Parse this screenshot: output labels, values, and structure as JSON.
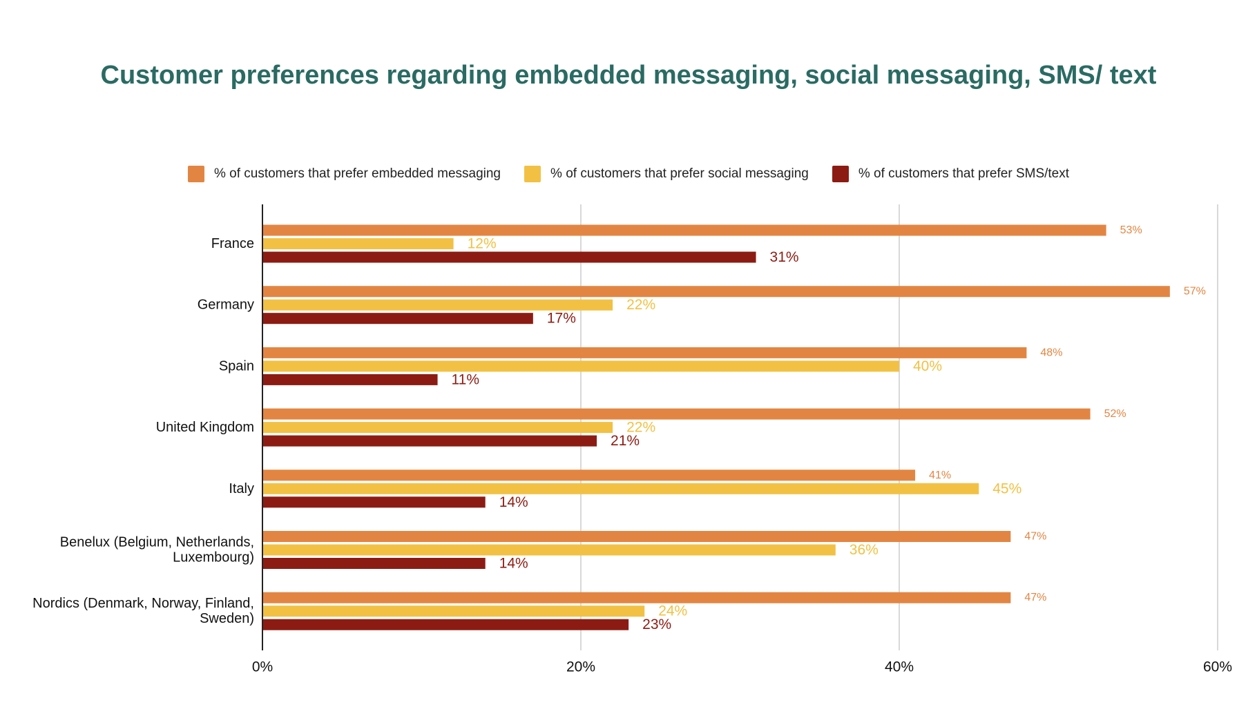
{
  "chart_data": {
    "type": "bar",
    "orientation": "horizontal",
    "title": "Customer preferences regarding embedded messaging, social messaging, SMS/ text",
    "categories": [
      [
        "France"
      ],
      [
        "Germany"
      ],
      [
        "Spain"
      ],
      [
        "United Kingdom"
      ],
      [
        "Italy"
      ],
      [
        "Benelux (Belgium, Netherlands,",
        "Luxembourg)"
      ],
      [
        "Nordics (Denmark, Norway, Finland,",
        "Sweden)"
      ]
    ],
    "series": [
      {
        "name": "% of customers that prefer embedded messaging",
        "color": "#e38542",
        "values": [
          53,
          57,
          48,
          52,
          41,
          47,
          47
        ],
        "labels": [
          "53%",
          "57%",
          "48%",
          "52%",
          "41%",
          "47%",
          "47%"
        ]
      },
      {
        "name": "% of customers that prefer social messaging",
        "color": "#f2c144",
        "values": [
          12,
          22,
          40,
          22,
          45,
          36,
          24
        ],
        "labels": [
          "12%",
          "22%",
          "40%",
          "22%",
          "45%",
          "36%",
          "24%"
        ]
      },
      {
        "name": "% of customers that prefer SMS/text",
        "color": "#8c1c13",
        "values": [
          31,
          17,
          11,
          21,
          14,
          14,
          23
        ],
        "labels": [
          "31%",
          "17%",
          "11%",
          "21%",
          "14%",
          "14%",
          "23%"
        ]
      }
    ],
    "x_ticks": [
      {
        "value": 0,
        "label": "0%"
      },
      {
        "value": 20,
        "label": "20%"
      },
      {
        "value": 40,
        "label": "40%"
      },
      {
        "value": 60,
        "label": "60%"
      }
    ],
    "xlim": [
      0,
      60
    ],
    "grid": "vertical",
    "legend_position": "top"
  }
}
